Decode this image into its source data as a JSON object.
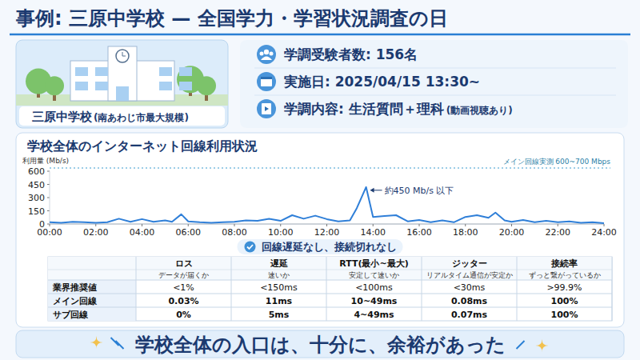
{
  "header": {
    "title": "事例: 三原中学校 — 全国学力・学習状況調査の日"
  },
  "school": {
    "name": "三原中学校",
    "note": "(南あわじ市最大規模)"
  },
  "info": [
    {
      "label": "学調受験者数: 156名"
    },
    {
      "label": "実施日: 2025/04/15 13:30~"
    },
    {
      "label": "学調内容: 生活質問＋理科",
      "note": "(動画視聴あり)"
    }
  ],
  "chart_data": {
    "type": "line",
    "title": "学校全体のインターネット回線利用状況",
    "y_label": "利用量 (Mb/s)",
    "x": [
      0,
      0.5,
      1,
      1.5,
      2,
      2.5,
      3,
      3.5,
      4,
      4.5,
      5,
      5.3,
      5.7,
      6,
      6.5,
      7,
      7.5,
      8,
      8.5,
      9,
      9.5,
      10,
      10.5,
      11,
      11.5,
      12,
      12.5,
      13,
      13.3,
      13.7,
      14,
      14.5,
      15,
      15.5,
      16,
      16.5,
      17,
      17.5,
      18,
      18.5,
      19,
      19.3,
      19.7,
      20,
      20.5,
      21,
      21.5,
      22,
      22.5,
      23,
      23.5,
      24
    ],
    "values": [
      20,
      15,
      25,
      20,
      15,
      20,
      60,
      25,
      55,
      25,
      40,
      25,
      110,
      30,
      20,
      15,
      20,
      25,
      40,
      35,
      60,
      35,
      100,
      60,
      95,
      55,
      30,
      40,
      180,
      420,
      80,
      90,
      100,
      30,
      45,
      20,
      40,
      20,
      80,
      100,
      70,
      130,
      40,
      25,
      45,
      20,
      35,
      20,
      30,
      15,
      20,
      10
    ],
    "color": "#2f7fd8",
    "xlim": [
      0,
      24
    ],
    "xticks": [
      {
        "value": 0,
        "label": "00:00"
      },
      {
        "value": 2,
        "label": "02:00"
      },
      {
        "value": 4,
        "label": "04:00"
      },
      {
        "value": 6,
        "label": "06:00"
      },
      {
        "value": 8,
        "label": "08:00"
      },
      {
        "value": 10,
        "label": "10:00"
      },
      {
        "value": 12,
        "label": "12:00"
      },
      {
        "value": 14,
        "label": "14:00"
      },
      {
        "value": 16,
        "label": "16:00"
      },
      {
        "value": 18,
        "label": "18:00"
      },
      {
        "value": 20,
        "label": "20:00"
      },
      {
        "value": 22,
        "label": "22:00"
      },
      {
        "value": 24,
        "label": "24:00"
      }
    ],
    "ylim": [
      0,
      600
    ],
    "yticks": [
      0,
      150,
      300,
      450,
      600
    ],
    "grid": false,
    "reference_label": "メイン回線実測 600~700 Mbps",
    "annotation": "約450 Mb/s 以下",
    "badge": "回線遅延なし、接続切れなし"
  },
  "table": {
    "columns": [
      {
        "name": "ロス",
        "desc": "データが届くか"
      },
      {
        "name": "遅延",
        "desc": "速いか"
      },
      {
        "name": "RTT(最小~最大)",
        "desc": "安定して速いか"
      },
      {
        "name": "ジッター",
        "desc": "リアルタイム通信が安定か"
      },
      {
        "name": "接続率",
        "desc": "ずっと繋がっているか"
      }
    ],
    "rows": [
      {
        "label": "業界推奨値",
        "cells": [
          "<1%",
          "<150ms",
          "<100ms",
          "<30ms",
          ">99.9%"
        ]
      },
      {
        "label": "メイン回線",
        "cells": [
          "0.03%",
          "11ms",
          "10~49ms",
          "0.08ms",
          "100%"
        ]
      },
      {
        "label": "サブ回線",
        "cells": [
          "0%",
          "5ms",
          "4~49ms",
          "0.07ms",
          "100%"
        ]
      }
    ]
  },
  "footer": {
    "text": "学校全体の入口は、十分に、余裕があった"
  }
}
